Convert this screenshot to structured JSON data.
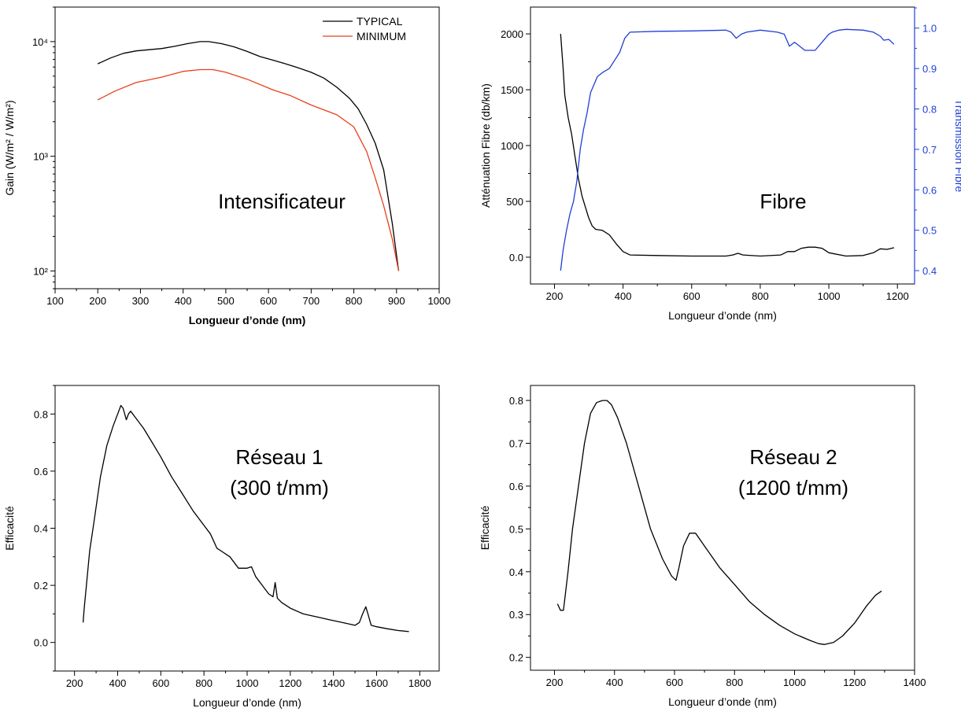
{
  "colors": {
    "black": "#000000",
    "red": "#e8401c",
    "blue": "#1f3fd6"
  },
  "chart_data": [
    {
      "type": "line",
      "title": "Intensificateur",
      "xlabel": "Longueur d’onde (nm)",
      "ylabel": "Gain (W/m² / W/m²)",
      "xlim": [
        100,
        1000
      ],
      "ylim": [
        70,
        20000
      ],
      "yscale": "log",
      "xticks": [
        100,
        200,
        300,
        400,
        500,
        600,
        700,
        800,
        900,
        1000
      ],
      "yticks": [
        {
          "value": 100,
          "label": "10²"
        },
        {
          "value": 1000,
          "label": "10³"
        },
        {
          "value": 10000,
          "label": "10⁴"
        }
      ],
      "legend": "top-right",
      "grid": false,
      "series": [
        {
          "name": "TYPICAL",
          "color": "#000000",
          "x": [
            200,
            230,
            260,
            290,
            320,
            350,
            380,
            410,
            440,
            460,
            490,
            520,
            550,
            580,
            610,
            640,
            670,
            700,
            730,
            760,
            790,
            810,
            830,
            850,
            870,
            890,
            905
          ],
          "y": [
            6400,
            7200,
            7900,
            8300,
            8500,
            8700,
            9100,
            9600,
            10000,
            10000,
            9600,
            9000,
            8200,
            7400,
            6900,
            6400,
            5900,
            5400,
            4800,
            4000,
            3200,
            2600,
            1900,
            1300,
            760,
            260,
            100
          ]
        },
        {
          "name": "MINIMUM",
          "color": "#e8401c",
          "x": [
            200,
            240,
            290,
            350,
            400,
            440,
            470,
            500,
            550,
            610,
            650,
            700,
            760,
            800,
            830,
            850,
            870,
            890,
            905
          ],
          "y": [
            3100,
            3700,
            4400,
            4900,
            5500,
            5700,
            5700,
            5400,
            4700,
            3800,
            3400,
            2800,
            2300,
            1800,
            1100,
            650,
            370,
            190,
            100
          ]
        }
      ]
    },
    {
      "type": "line",
      "title": "Fibre",
      "xlabel": "Longueur d’onde (nm)",
      "ylabel": "Atténuation Fibre (db/km)",
      "y2label": "Transmission Fibre",
      "xlim": [
        130,
        1250
      ],
      "ylim": [
        -240,
        2240
      ],
      "y2lim": [
        0.367,
        1.052
      ],
      "xticks": [
        200,
        400,
        600,
        800,
        1000,
        1200
      ],
      "yticks": [
        0,
        500,
        1000,
        1500,
        2000
      ],
      "y2ticks": [
        0.4,
        0.5,
        0.6,
        0.7,
        0.8,
        0.9,
        1.0
      ],
      "grid": false,
      "series": [
        {
          "axis": "left",
          "color": "#000000",
          "x": [
            218,
            225,
            230,
            240,
            250,
            260,
            270,
            280,
            290,
            300,
            310,
            320,
            340,
            360,
            380,
            400,
            420,
            500,
            600,
            700,
            720,
            735,
            750,
            800,
            860,
            880,
            900,
            920,
            940,
            960,
            980,
            1000,
            1050,
            1100,
            1130,
            1150,
            1170,
            1190
          ],
          "y": [
            2000,
            1700,
            1450,
            1250,
            1100,
            900,
            700,
            550,
            450,
            350,
            280,
            250,
            240,
            200,
            120,
            50,
            20,
            15,
            10,
            10,
            20,
            35,
            20,
            10,
            20,
            50,
            50,
            80,
            90,
            90,
            80,
            40,
            10,
            15,
            40,
            75,
            70,
            85
          ]
        },
        {
          "axis": "right",
          "color": "#1f3fd6",
          "x": [
            218,
            225,
            235,
            245,
            255,
            265,
            275,
            285,
            295,
            305,
            315,
            325,
            340,
            360,
            375,
            390,
            405,
            420,
            500,
            600,
            700,
            715,
            730,
            745,
            760,
            800,
            850,
            870,
            885,
            900,
            915,
            930,
            960,
            975,
            990,
            1000,
            1010,
            1030,
            1050,
            1100,
            1130,
            1150,
            1160,
            1175,
            1190
          ],
          "y": [
            0.4,
            0.45,
            0.5,
            0.54,
            0.57,
            0.62,
            0.7,
            0.75,
            0.79,
            0.84,
            0.86,
            0.88,
            0.89,
            0.9,
            0.92,
            0.94,
            0.975,
            0.99,
            0.992,
            0.993,
            0.995,
            0.99,
            0.975,
            0.985,
            0.99,
            0.995,
            0.99,
            0.985,
            0.955,
            0.965,
            0.955,
            0.945,
            0.945,
            0.96,
            0.975,
            0.985,
            0.99,
            0.995,
            0.997,
            0.995,
            0.99,
            0.98,
            0.97,
            0.972,
            0.96
          ]
        }
      ]
    },
    {
      "type": "line",
      "title": [
        "Réseau 1",
        "(300 t/mm)"
      ],
      "xlabel": "Longueur d’onde (nm)",
      "ylabel": "Efficacité",
      "xlim": [
        110,
        1890
      ],
      "ylim": [
        -0.1,
        0.9
      ],
      "xticks": [
        200,
        400,
        600,
        800,
        1000,
        1200,
        1400,
        1600,
        1800
      ],
      "yticks": [
        0.0,
        0.2,
        0.4,
        0.6,
        0.8
      ],
      "grid": false,
      "series": [
        {
          "color": "#000000",
          "x": [
            240,
            245,
            255,
            270,
            290,
            320,
            350,
            380,
            400,
            415,
            425,
            440,
            450,
            460,
            480,
            520,
            560,
            600,
            650,
            700,
            750,
            800,
            830,
            860,
            880,
            920,
            960,
            1000,
            1020,
            1040,
            1070,
            1100,
            1120,
            1130,
            1140,
            1160,
            1200,
            1260,
            1320,
            1380,
            1440,
            1500,
            1520,
            1535,
            1550,
            1560,
            1575,
            1600,
            1650,
            1700,
            1750
          ],
          "y": [
            0.07,
            0.12,
            0.2,
            0.32,
            0.42,
            0.58,
            0.69,
            0.76,
            0.8,
            0.83,
            0.82,
            0.78,
            0.8,
            0.81,
            0.79,
            0.75,
            0.7,
            0.65,
            0.58,
            0.52,
            0.46,
            0.41,
            0.38,
            0.33,
            0.32,
            0.3,
            0.26,
            0.26,
            0.265,
            0.23,
            0.2,
            0.17,
            0.16,
            0.21,
            0.155,
            0.14,
            0.12,
            0.1,
            0.09,
            0.08,
            0.07,
            0.06,
            0.07,
            0.1,
            0.125,
            0.1,
            0.06,
            0.055,
            0.048,
            0.042,
            0.038
          ]
        }
      ]
    },
    {
      "type": "line",
      "title": [
        "Réseau 2",
        "(1200 t/mm)"
      ],
      "xlabel": "Longueur d’onde (nm)",
      "ylabel": "Efficacité",
      "xlim": [
        120,
        1400
      ],
      "ylim": [
        0.17,
        0.835
      ],
      "xticks": [
        200,
        400,
        600,
        800,
        1000,
        1200,
        1400
      ],
      "yticks": [
        0.2,
        0.3,
        0.4,
        0.5,
        0.6,
        0.7,
        0.8
      ],
      "grid": false,
      "series": [
        {
          "color": "#000000",
          "x": [
            210,
            220,
            230,
            245,
            260,
            280,
            300,
            320,
            340,
            360,
            375,
            390,
            410,
            440,
            480,
            520,
            560,
            590,
            605,
            615,
            630,
            650,
            670,
            700,
            750,
            800,
            850,
            900,
            950,
            1000,
            1050,
            1080,
            1100,
            1130,
            1160,
            1200,
            1240,
            1270,
            1290
          ],
          "y": [
            0.325,
            0.31,
            0.31,
            0.4,
            0.5,
            0.6,
            0.7,
            0.77,
            0.795,
            0.8,
            0.8,
            0.79,
            0.76,
            0.7,
            0.6,
            0.5,
            0.43,
            0.39,
            0.38,
            0.41,
            0.46,
            0.49,
            0.49,
            0.46,
            0.41,
            0.37,
            0.33,
            0.3,
            0.275,
            0.255,
            0.24,
            0.232,
            0.23,
            0.235,
            0.25,
            0.28,
            0.32,
            0.345,
            0.355
          ]
        }
      ]
    }
  ]
}
